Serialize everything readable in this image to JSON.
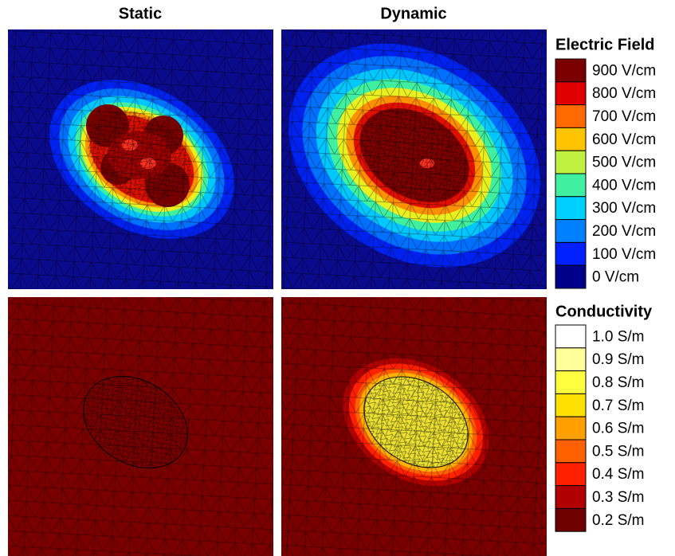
{
  "columns": [
    "Static",
    "Dynamic"
  ],
  "legends": [
    {
      "title": "Electric Field",
      "entries": [
        "900 V/cm",
        "800 V/cm",
        "700 V/cm",
        "600 V/cm",
        "500 V/cm",
        "400 V/cm",
        "300 V/cm",
        "200 V/cm",
        "100 V/cm",
        "0 V/cm"
      ]
    },
    {
      "title": "Conductivity",
      "entries": [
        "1.0 S/m",
        "0.9 S/m",
        "0.8 S/m",
        "0.7 S/m",
        "0.6 S/m",
        "0.5 S/m",
        "0.4 S/m",
        "0.3 S/m",
        "0.2 S/m"
      ]
    }
  ]
}
